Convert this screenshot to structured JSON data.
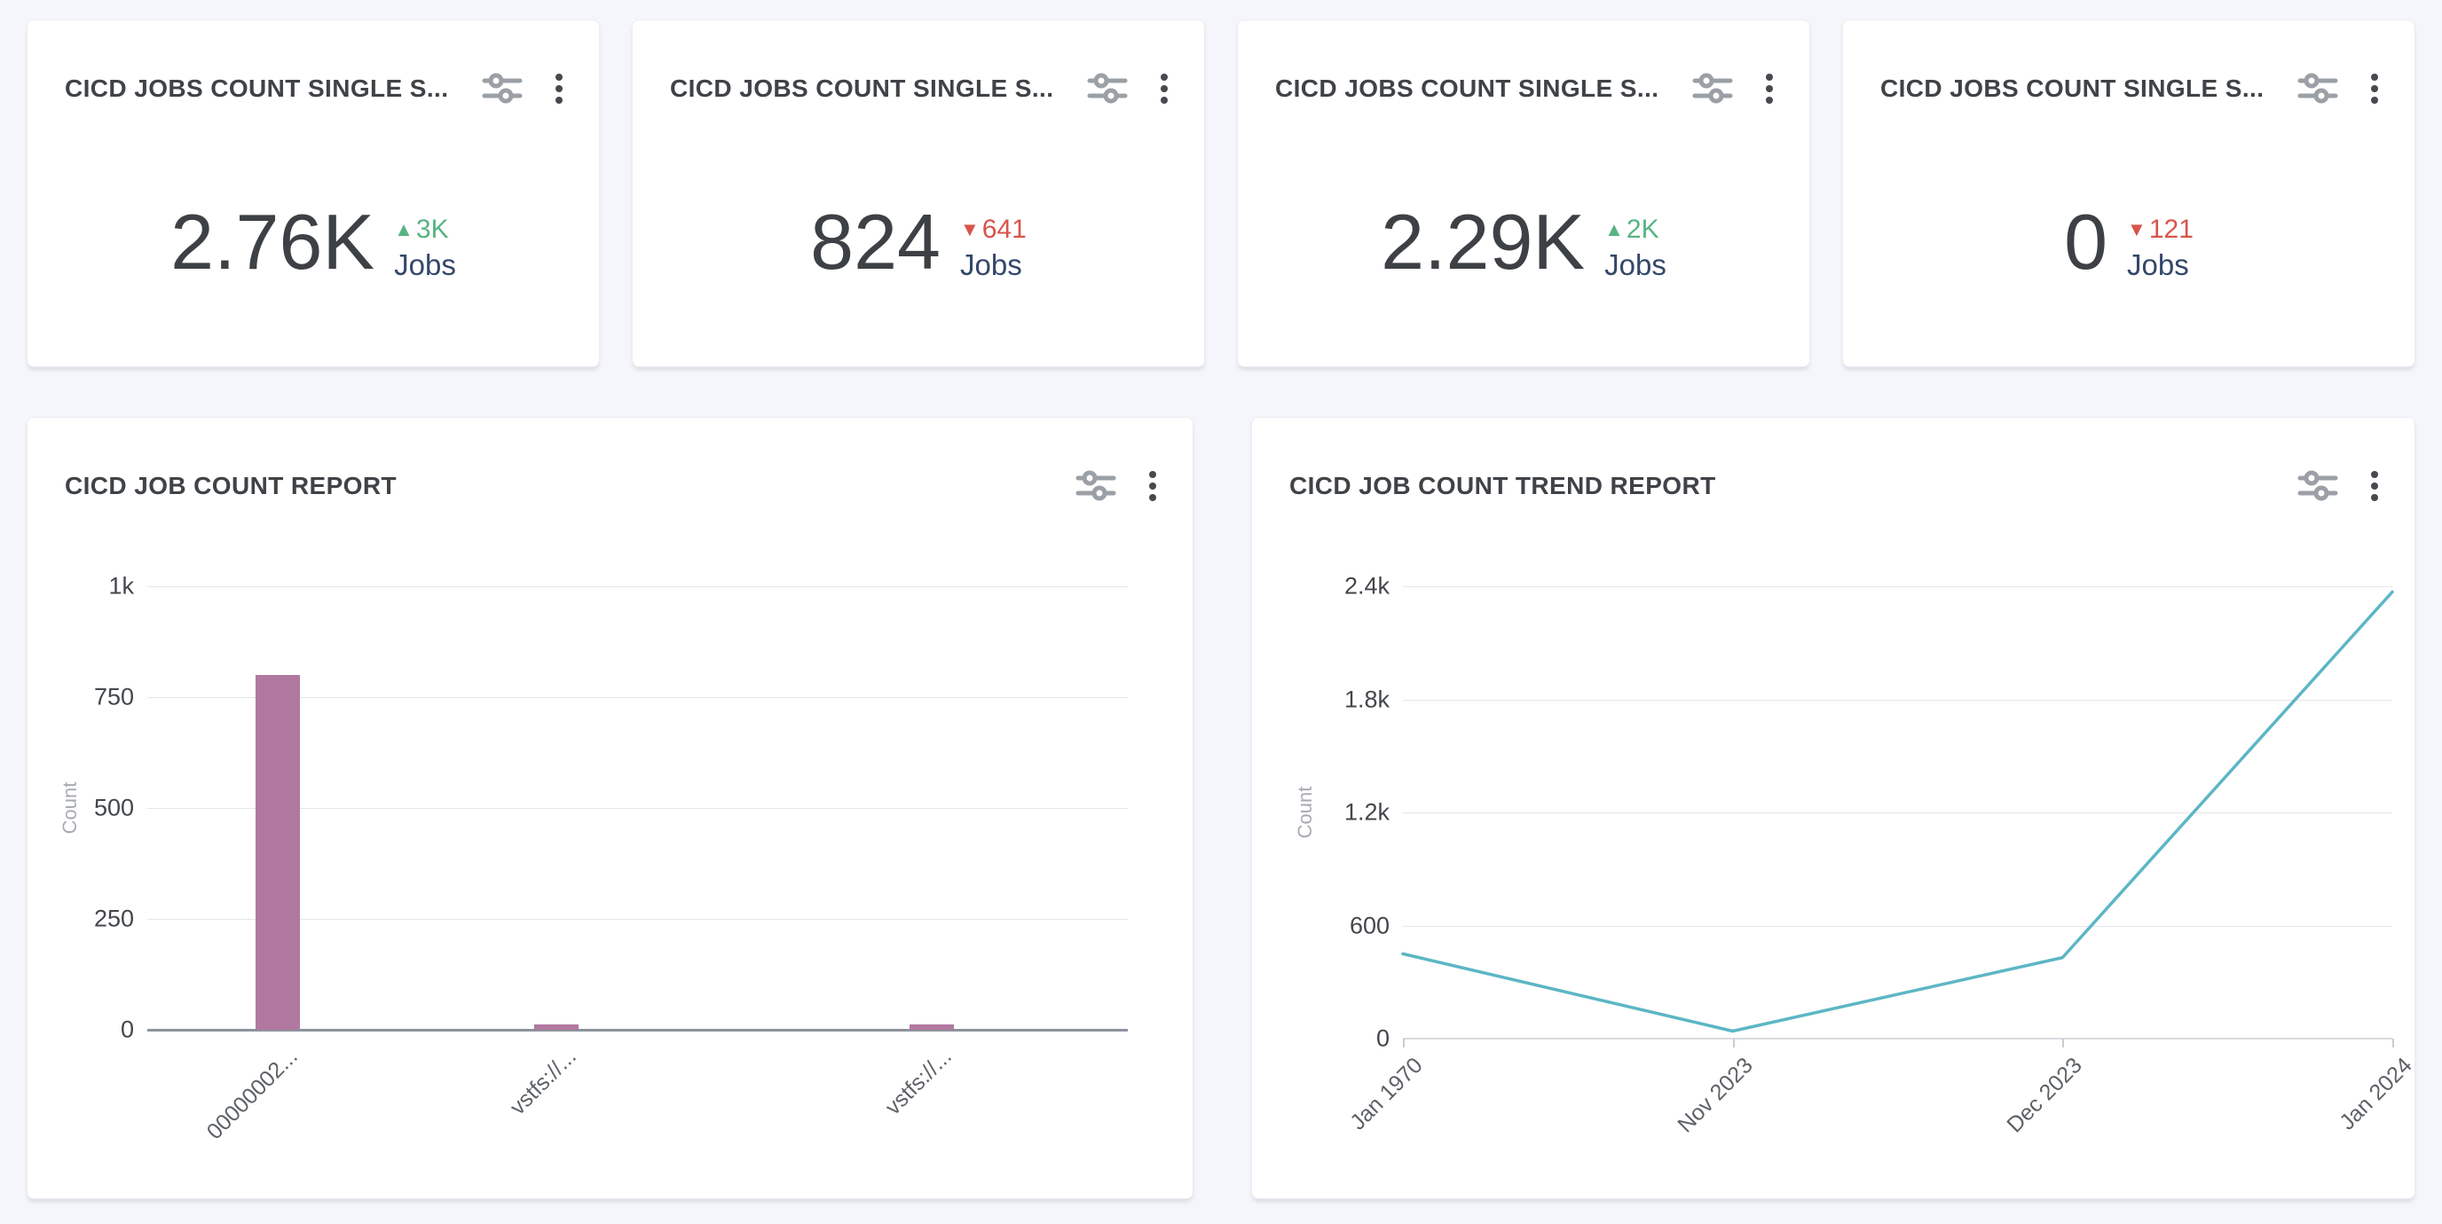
{
  "page": {
    "background": "#f5f6fb"
  },
  "colors": {
    "delta_up": "#58b483",
    "delta_down": "#d8544a",
    "unit_text": "#344769",
    "value_text": "#3d4145",
    "bar": "#b1789f",
    "line": "#5cb6c5",
    "icon_gray": "#9aa0a6"
  },
  "stat_cards": [
    {
      "title": "CICD JOBS COUNT SINGLE S...",
      "value": "2.76K",
      "delta": "3K",
      "trend": "up",
      "unit": "Jobs"
    },
    {
      "title": "CICD JOBS COUNT SINGLE S...",
      "value": "824",
      "delta": "641",
      "trend": "down",
      "unit": "Jobs"
    },
    {
      "title": "CICD JOBS COUNT SINGLE S...",
      "value": "2.29K",
      "delta": "2K",
      "trend": "up",
      "unit": "Jobs"
    },
    {
      "title": "CICD JOBS COUNT SINGLE S...",
      "value": "0",
      "delta": "121",
      "trend": "down",
      "unit": "Jobs"
    }
  ],
  "chart_data": [
    {
      "type": "bar",
      "title": "CICD JOB COUNT REPORT",
      "xlabel": "",
      "ylabel": "Count",
      "categories": [
        "00000002...",
        "vstfs://...",
        "vstfs://..."
      ],
      "values": [
        800,
        12,
        12
      ],
      "yticks": {
        "labels": [
          "1k",
          "750",
          "500",
          "250",
          "0"
        ],
        "values": [
          1000,
          750,
          500,
          250,
          0
        ]
      },
      "ylim": [
        0,
        1000
      ],
      "grid": true,
      "legend": "none",
      "bar_color": "#b1789f"
    },
    {
      "type": "line",
      "title": "CICD JOB COUNT TREND REPORT",
      "xlabel": "",
      "ylabel": "Count",
      "x": [
        "Jan 1970",
        "Nov 2023",
        "Dec 2023",
        "Jan 2024"
      ],
      "values": [
        450,
        40,
        430,
        2370
      ],
      "yticks": {
        "labels": [
          "2.4k",
          "1.8k",
          "1.2k",
          "600",
          "0"
        ],
        "values": [
          2400,
          1800,
          1200,
          600,
          0
        ]
      },
      "ylim": [
        0,
        2400
      ],
      "grid": true,
      "legend": "none",
      "line_color": "#5cb6c5"
    }
  ]
}
